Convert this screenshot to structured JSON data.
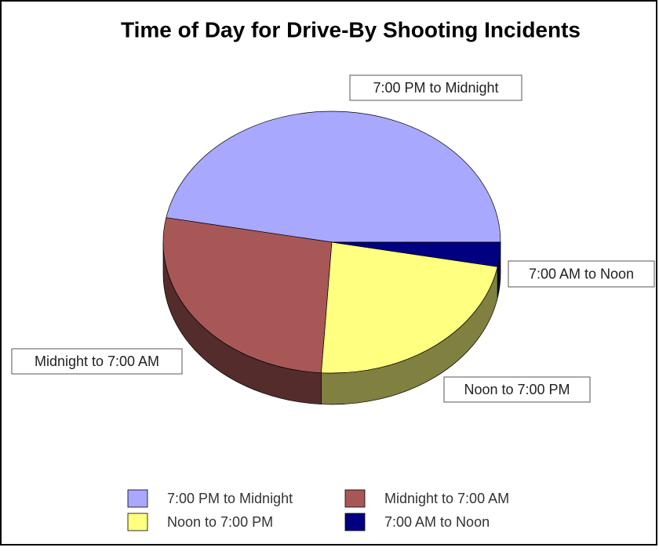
{
  "chart_data": {
    "type": "pie",
    "title": "Time of Day for Drive-By Shooting Incidents",
    "categories": [
      "7:00 PM to Midnight",
      "Midnight to 7:00 AM",
      "Noon to 7:00 PM",
      "7:00 AM to Noon"
    ],
    "values": [
      47,
      27,
      23,
      3
    ],
    "colors": [
      "#a8a8ff",
      "#a85757",
      "#ffff80",
      "#000080"
    ],
    "legend": "bottom"
  }
}
